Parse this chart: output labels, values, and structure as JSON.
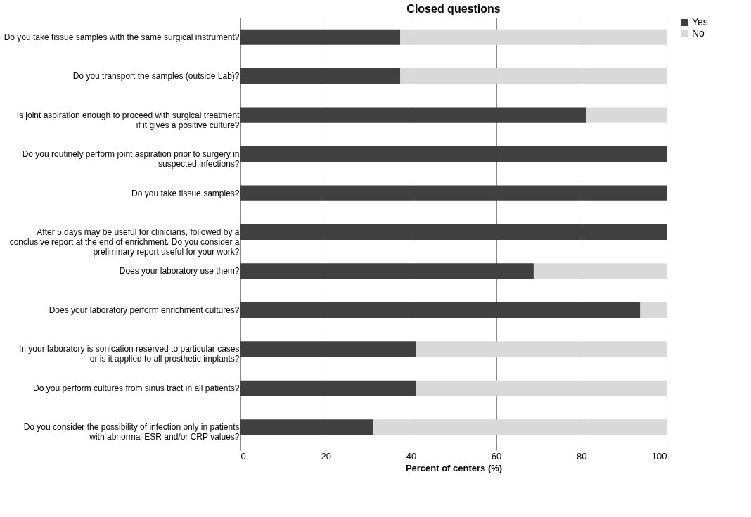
{
  "chart_data": {
    "type": "bar",
    "title": "Closed questions",
    "xlabel": "Percent  of  centers (%)",
    "orientation": "horizontal",
    "stacked": true,
    "categories": [
      "Do you take tissue samples with the same surgical instrument?",
      "Do you transport the samples (outside Lab)?",
      "Is joint aspiration enough to proceed with surgical treatment if it gives a positive culture?",
      "Do you routinely perform joint aspiration prior to surgery in suspected infections?",
      "Do you take tissue samples?",
      "After 5 days may be useful for clinicians, followed by a conclusive report at the end of enrichment. Do you consider a preliminary report useful for your work?",
      "Does your laboratory use them?",
      "Does your laboratory perform enrichment cultures?",
      "In your laboratory is sonication reserved to particular cases or is it applied to all prosthetic implants?",
      "Do you perform cultures from sinus tract in all patients?",
      "Do you consider the possibility of infection only in patients with abnormal ESR and/or CRP values?"
    ],
    "series": [
      {
        "name": "Yes",
        "color": "#404040",
        "values": [
          37.5,
          37.5,
          81.2,
          100,
          100,
          100,
          68.8,
          93.8,
          41.2,
          41.2,
          31.2
        ]
      },
      {
        "name": "No",
        "color": "#d9d9d9",
        "values": [
          62.5,
          62.5,
          18.8,
          0,
          0,
          0,
          31.2,
          6.2,
          58.8,
          58.8,
          68.8
        ]
      }
    ],
    "xlim": [
      0,
      100
    ],
    "xticks": [
      0,
      20,
      40,
      60,
      80,
      100
    ],
    "grid": "x",
    "legend": "right"
  }
}
